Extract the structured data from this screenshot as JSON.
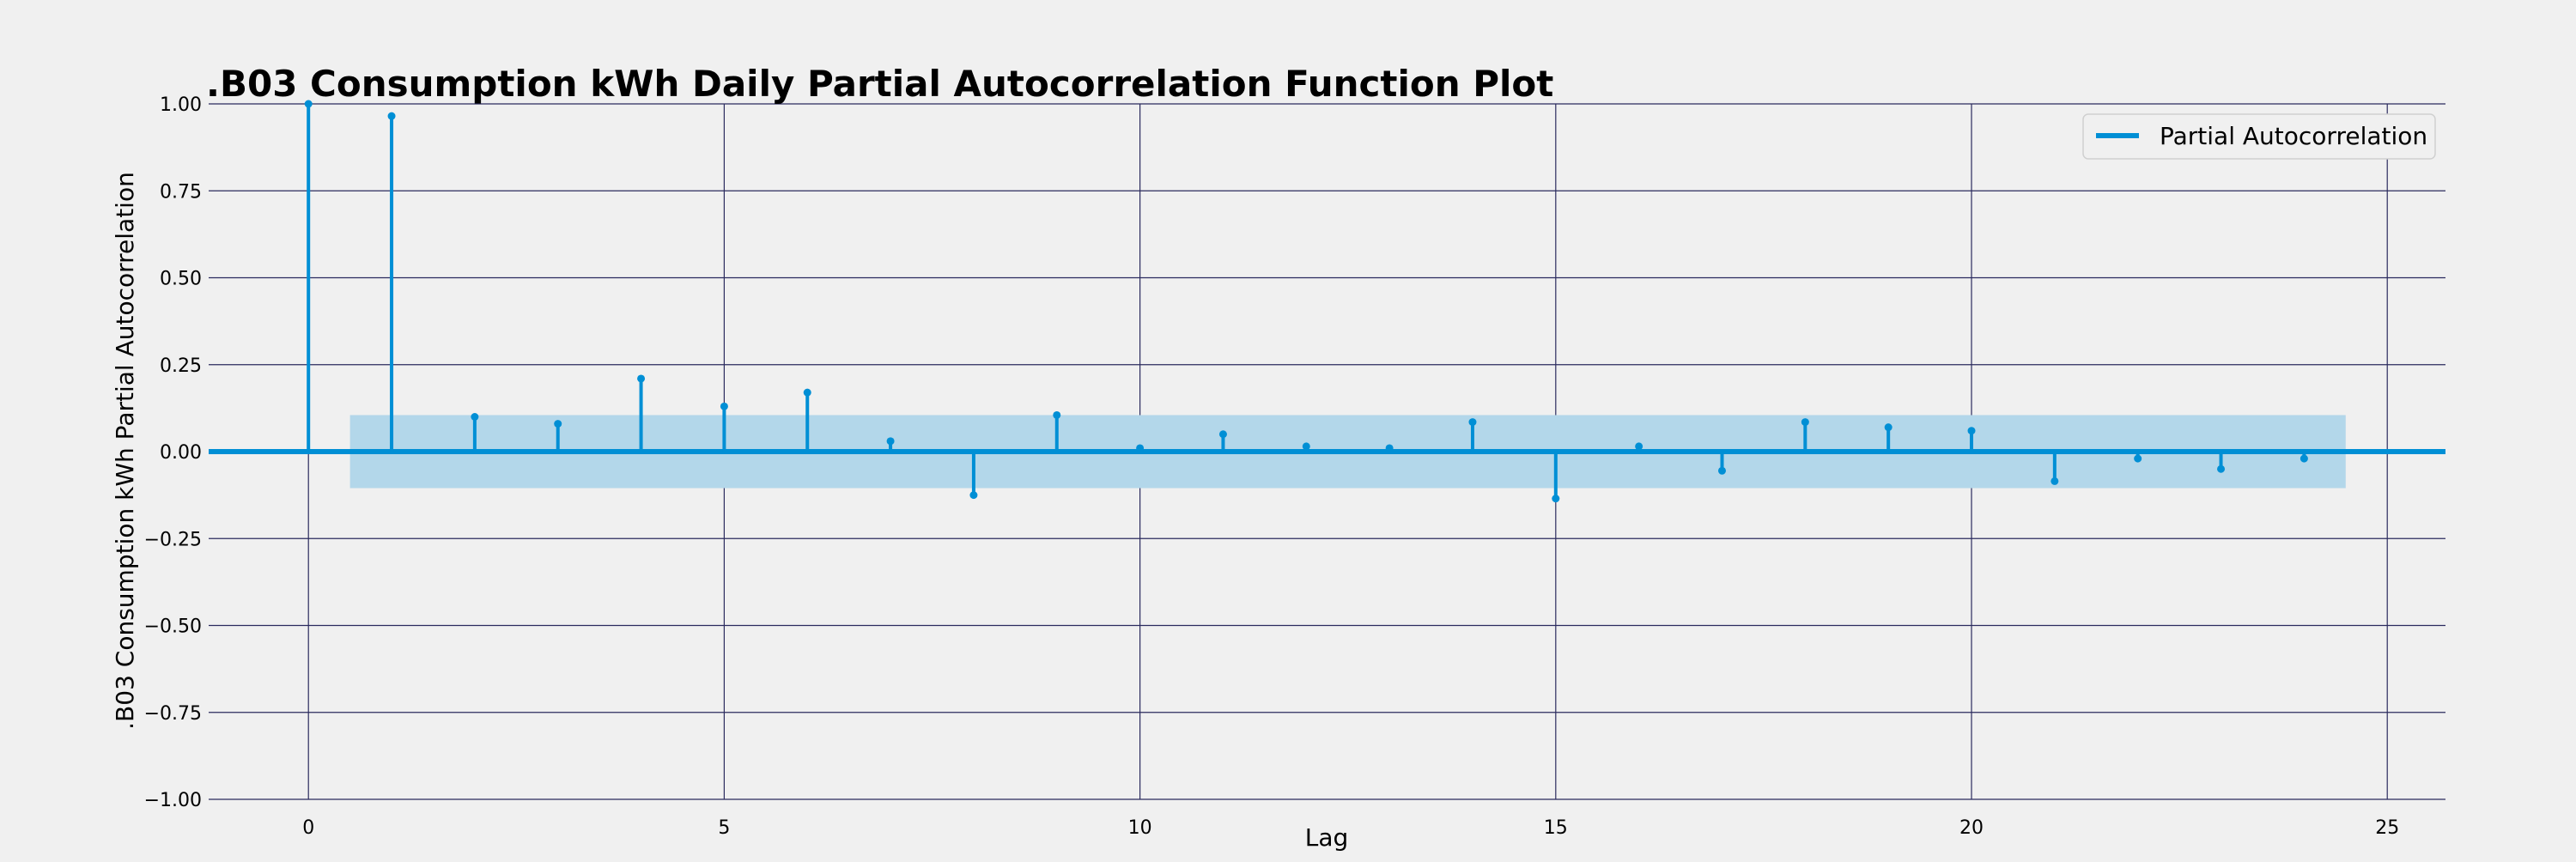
{
  "chart_data": {
    "type": "stem",
    "title": ".B03 Consumption kWh Daily Partial Autocorrelation Function Plot",
    "xlabel": "Lag",
    "ylabel": ".B03 Consumption kWh Partial Autocorrelation",
    "xlim": [
      -1.2,
      25.7
    ],
    "ylim": [
      -1.0,
      1.0
    ],
    "xticks": [
      0,
      5,
      10,
      15,
      20,
      25
    ],
    "yticks": [
      -1.0,
      -0.75,
      -0.5,
      -0.25,
      0.0,
      0.25,
      0.5,
      0.75,
      1.0
    ],
    "xtick_labels": [
      "0",
      "5",
      "10",
      "15",
      "20",
      "25"
    ],
    "ytick_labels": [
      "−1.00",
      "−0.75",
      "−0.50",
      "−0.25",
      "0.00",
      "0.25",
      "0.50",
      "0.75",
      "1.00"
    ],
    "grid": true,
    "legend": {
      "position": "top-right",
      "entries": [
        "Partial Autocorrelation"
      ]
    },
    "series": [
      {
        "name": "Partial Autocorrelation",
        "color": "#008fd5",
        "x": [
          0,
          1,
          2,
          3,
          4,
          5,
          6,
          7,
          8,
          9,
          10,
          11,
          12,
          13,
          14,
          15,
          16,
          17,
          18,
          19,
          20,
          21,
          22,
          23,
          24
        ],
        "values": [
          1.0,
          0.965,
          0.1,
          0.08,
          0.21,
          0.13,
          0.17,
          0.03,
          -0.125,
          0.105,
          0.01,
          0.05,
          0.015,
          0.01,
          0.085,
          -0.135,
          0.015,
          -0.055,
          0.085,
          0.07,
          0.06,
          -0.085,
          -0.02,
          -0.05,
          -0.02
        ]
      }
    ],
    "confidence_band": {
      "color": "#b3d7ea",
      "x_start": 0.5,
      "x_end": 24.5,
      "lower": -0.105,
      "upper": 0.105
    }
  }
}
